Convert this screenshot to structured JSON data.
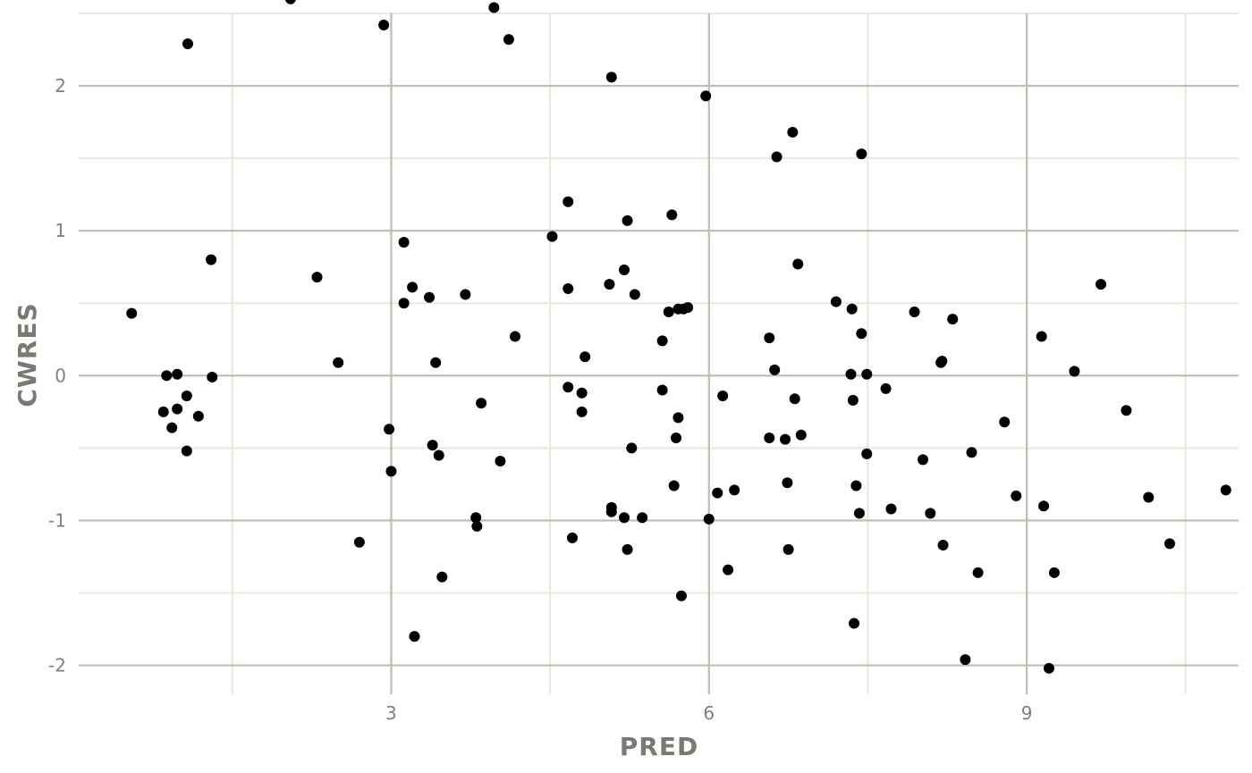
{
  "chart_data": {
    "type": "scatter",
    "title": "",
    "xlabel": "PRED",
    "ylabel": "CWRES",
    "xlim": [
      0.05,
      11.0
    ],
    "ylim": [
      -2.2,
      2.5
    ],
    "x_ticks": [
      3,
      6,
      9
    ],
    "x_tick_labels": [
      "3",
      "6",
      "9"
    ],
    "x_minor_ticks": [
      1.5,
      4.5,
      7.5,
      10.5
    ],
    "y_ticks": [
      -2,
      -1,
      0,
      1,
      2
    ],
    "y_tick_labels": [
      "-2",
      "-1",
      "0",
      "1",
      "2"
    ],
    "y_minor_ticks": [
      -1.5,
      -0.5,
      0.5,
      1.5,
      2.5
    ],
    "grid": true,
    "legend": "none",
    "point_color": "#000000",
    "points": [
      [
        1.08,
        2.29
      ],
      [
        2.05,
        2.6
      ],
      [
        2.3,
        0.68
      ],
      [
        2.5,
        0.09
      ],
      [
        2.7,
        -1.15
      ],
      [
        2.93,
        2.42
      ],
      [
        2.98,
        -0.37
      ],
      [
        3.0,
        -0.66
      ],
      [
        3.12,
        0.92
      ],
      [
        3.12,
        0.5
      ],
      [
        3.2,
        0.61
      ],
      [
        3.22,
        -1.8
      ],
      [
        3.36,
        0.54
      ],
      [
        3.39,
        -0.48
      ],
      [
        3.42,
        0.09
      ],
      [
        3.45,
        -0.55
      ],
      [
        3.48,
        -1.39
      ],
      [
        3.7,
        0.56
      ],
      [
        3.8,
        -0.98
      ],
      [
        3.81,
        -1.04
      ],
      [
        3.85,
        -0.19
      ],
      [
        3.97,
        2.54
      ],
      [
        4.03,
        -0.59
      ],
      [
        4.11,
        2.32
      ],
      [
        4.17,
        0.27
      ],
      [
        4.52,
        0.96
      ],
      [
        4.67,
        1.2
      ],
      [
        4.67,
        0.6
      ],
      [
        4.67,
        -0.08
      ],
      [
        4.71,
        -1.12
      ],
      [
        4.8,
        -0.12
      ],
      [
        4.8,
        -0.25
      ],
      [
        4.83,
        0.13
      ],
      [
        5.06,
        0.63
      ],
      [
        5.08,
        2.06
      ],
      [
        5.08,
        -0.94
      ],
      [
        5.08,
        -0.91
      ],
      [
        5.2,
        0.73
      ],
      [
        5.2,
        -0.98
      ],
      [
        5.23,
        1.07
      ],
      [
        5.23,
        -1.2
      ],
      [
        5.27,
        -0.5
      ],
      [
        5.3,
        0.56
      ],
      [
        5.37,
        -0.98
      ],
      [
        5.56,
        0.24
      ],
      [
        5.56,
        -0.1
      ],
      [
        5.62,
        0.44
      ],
      [
        5.65,
        1.11
      ],
      [
        5.67,
        -0.76
      ],
      [
        5.69,
        -0.43
      ],
      [
        5.71,
        -0.29
      ],
      [
        5.71,
        0.46
      ],
      [
        5.74,
        -1.52
      ],
      [
        5.76,
        0.46
      ],
      [
        5.8,
        0.47
      ],
      [
        5.97,
        1.93
      ],
      [
        6.0,
        -0.99
      ],
      [
        6.08,
        -0.81
      ],
      [
        6.13,
        -0.14
      ],
      [
        6.18,
        -1.34
      ],
      [
        6.24,
        -0.79
      ],
      [
        6.57,
        0.26
      ],
      [
        6.57,
        -0.43
      ],
      [
        6.62,
        0.04
      ],
      [
        6.64,
        1.51
      ],
      [
        6.72,
        -0.44
      ],
      [
        6.74,
        -0.74
      ],
      [
        6.75,
        -1.2
      ],
      [
        6.79,
        1.68
      ],
      [
        6.81,
        -0.16
      ],
      [
        6.84,
        0.77
      ],
      [
        6.87,
        -0.41
      ],
      [
        7.2,
        0.51
      ],
      [
        7.34,
        0.01
      ],
      [
        7.35,
        0.46
      ],
      [
        7.36,
        -0.17
      ],
      [
        7.37,
        -1.71
      ],
      [
        7.39,
        -0.76
      ],
      [
        7.42,
        -0.95
      ],
      [
        7.44,
        1.53
      ],
      [
        7.44,
        0.29
      ],
      [
        7.49,
        0.01
      ],
      [
        7.49,
        -0.54
      ],
      [
        7.67,
        -0.09
      ],
      [
        7.72,
        -0.92
      ],
      [
        7.94,
        0.44
      ],
      [
        8.02,
        -0.58
      ],
      [
        8.09,
        -0.95
      ],
      [
        8.19,
        0.09
      ],
      [
        8.2,
        0.1
      ],
      [
        8.21,
        -1.17
      ],
      [
        8.3,
        0.39
      ],
      [
        8.42,
        -1.96
      ],
      [
        8.48,
        -0.53
      ],
      [
        8.54,
        -1.36
      ],
      [
        8.79,
        -0.32
      ],
      [
        8.9,
        -0.83
      ],
      [
        9.14,
        0.27
      ],
      [
        9.16,
        -0.9
      ],
      [
        9.21,
        -2.02
      ],
      [
        9.26,
        -1.36
      ],
      [
        9.45,
        0.03
      ],
      [
        9.7,
        0.63
      ],
      [
        9.94,
        -0.24
      ],
      [
        10.15,
        -0.84
      ],
      [
        10.35,
        -1.16
      ],
      [
        10.88,
        -0.79
      ],
      [
        0.55,
        0.43
      ],
      [
        0.85,
        -0.25
      ],
      [
        0.88,
        0.0
      ],
      [
        0.93,
        -0.36
      ],
      [
        0.98,
        -0.23
      ],
      [
        0.98,
        0.01
      ],
      [
        1.07,
        -0.14
      ],
      [
        1.07,
        -0.52
      ],
      [
        1.18,
        -0.28
      ],
      [
        1.3,
        0.8
      ],
      [
        1.31,
        -0.01
      ]
    ]
  }
}
